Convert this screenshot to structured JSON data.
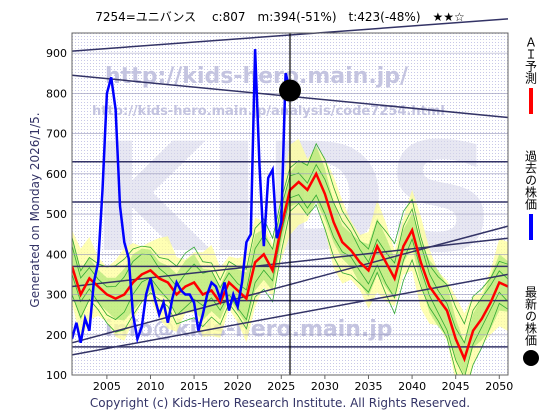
{
  "header": "7254=ユニバンス　 c:807　m:394(-51%)　t:423(-48%)　★★☆",
  "generated": "Generated on Monday 2026/1/5.",
  "footer": "Copyright (c) Kids-Hero Research Institute. All Rights Reserved.",
  "watermark": {
    "url1": "http://kids-hero.main.jp/",
    "url2": "http://kids-hero.main.jp/analysis/code7254.html",
    "mail": "info@kids-hero.main.jp"
  },
  "legend": [
    {
      "label": "ＡＩ予測",
      "color": "#ff0000"
    },
    {
      "label": "過去の株価",
      "color": "#0000ff"
    },
    {
      "label": "最新の株価",
      "color": "#000000"
    }
  ],
  "chart_data": {
    "type": "line",
    "title": "",
    "xlabel": "",
    "ylabel": "",
    "xlim": [
      2001,
      2051
    ],
    "ylim": [
      100,
      950
    ],
    "x_ticks": [
      2005,
      2010,
      2015,
      2020,
      2025,
      2030,
      2035,
      2040,
      2045,
      2050
    ],
    "y_ticks": [
      100,
      200,
      300,
      400,
      500,
      600,
      700,
      800,
      900
    ],
    "grid": true,
    "legend_position": "right",
    "series": [
      {
        "name": "過去の株価",
        "color": "#0000ff",
        "x": [
          2001.0,
          2001.5,
          2002.0,
          2002.5,
          2003.0,
          2003.5,
          2004.0,
          2004.5,
          2005.0,
          2005.5,
          2006.0,
          2006.5,
          2007.0,
          2007.5,
          2008.0,
          2008.5,
          2009.0,
          2009.5,
          2010.0,
          2010.5,
          2011.0,
          2011.5,
          2012.0,
          2012.5,
          2013.0,
          2013.5,
          2014.0,
          2014.5,
          2015.0,
          2015.5,
          2016.0,
          2016.5,
          2017.0,
          2017.5,
          2018.0,
          2018.5,
          2019.0,
          2019.5,
          2020.0,
          2020.5,
          2021.0,
          2021.5,
          2022.0,
          2022.5,
          2023.0,
          2023.5,
          2024.0,
          2024.5,
          2025.0,
          2025.5,
          2026.0
        ],
        "values": [
          190,
          230,
          180,
          240,
          210,
          330,
          380,
          560,
          800,
          840,
          760,
          520,
          430,
          390,
          250,
          190,
          220,
          300,
          340,
          290,
          250,
          280,
          230,
          290,
          330,
          310,
          300,
          300,
          280,
          210,
          250,
          300,
          330,
          320,
          290,
          330,
          260,
          300,
          270,
          330,
          430,
          450,
          910,
          620,
          420,
          590,
          610,
          440,
          480,
          850,
          807
        ]
      },
      {
        "name": "ＡＩ予測",
        "color": "#ff0000",
        "x": [
          2001.0,
          2002.0,
          2003.0,
          2004.0,
          2005.0,
          2006.0,
          2007.0,
          2008.0,
          2009.0,
          2010.0,
          2011.0,
          2012.0,
          2013.0,
          2014.0,
          2015.0,
          2016.0,
          2017.0,
          2018.0,
          2019.0,
          2020.0,
          2021.0,
          2022.0,
          2023.0,
          2024.0,
          2025.0,
          2026.0,
          2027.0,
          2028.0,
          2029.0,
          2030.0,
          2031.0,
          2032.0,
          2033.0,
          2034.0,
          2035.0,
          2036.0,
          2037.0,
          2038.0,
          2039.0,
          2040.0,
          2041.0,
          2042.0,
          2043.0,
          2044.0,
          2045.0,
          2046.0,
          2047.0,
          2048.0,
          2049.0,
          2050.0,
          2051.0
        ],
        "values": [
          370,
          300,
          340,
          320,
          300,
          290,
          300,
          330,
          350,
          360,
          340,
          330,
          300,
          320,
          330,
          300,
          310,
          280,
          330,
          310,
          290,
          380,
          400,
          360,
          470,
          560,
          580,
          560,
          600,
          550,
          480,
          430,
          410,
          380,
          360,
          420,
          380,
          340,
          420,
          460,
          380,
          320,
          290,
          260,
          190,
          140,
          210,
          240,
          280,
          330,
          320
        ]
      },
      {
        "name": "最新の株価",
        "color": "#000000",
        "x": [
          2026.0
        ],
        "values": [
          807
        ]
      }
    ]
  }
}
